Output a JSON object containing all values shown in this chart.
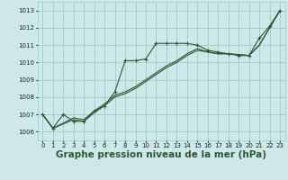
{
  "bg_color": "#cce8e8",
  "grid_color": "#99cccc",
  "line_color": "#2d5a2d",
  "xlabel": "Graphe pression niveau de la mer (hPa)",
  "xlabel_fontsize": 7.5,
  "xlim": [
    -0.5,
    23.5
  ],
  "ylim": [
    1005.5,
    1013.5
  ],
  "yticks": [
    1006,
    1007,
    1008,
    1009,
    1010,
    1011,
    1012,
    1013
  ],
  "xticks": [
    0,
    1,
    2,
    3,
    4,
    5,
    6,
    7,
    8,
    9,
    10,
    11,
    12,
    13,
    14,
    15,
    16,
    17,
    18,
    19,
    20,
    21,
    22,
    23
  ],
  "series1": [
    [
      0,
      1007.0
    ],
    [
      1,
      1006.2
    ],
    [
      2,
      1007.0
    ],
    [
      3,
      1006.6
    ],
    [
      4,
      1006.6
    ],
    [
      5,
      1007.2
    ],
    [
      6,
      1007.5
    ],
    [
      7,
      1008.3
    ],
    [
      8,
      1010.1
    ],
    [
      9,
      1010.1
    ],
    [
      10,
      1010.2
    ],
    [
      11,
      1011.1
    ],
    [
      12,
      1011.1
    ],
    [
      13,
      1011.1
    ],
    [
      14,
      1011.1
    ],
    [
      15,
      1011.0
    ],
    [
      16,
      1010.7
    ],
    [
      17,
      1010.6
    ],
    [
      18,
      1010.5
    ],
    [
      19,
      1010.4
    ],
    [
      20,
      1010.4
    ],
    [
      21,
      1011.4
    ],
    [
      22,
      1012.1
    ],
    [
      23,
      1013.0
    ]
  ],
  "series2": [
    [
      0,
      1007.0
    ],
    [
      1,
      1006.2
    ],
    [
      3,
      1006.8
    ],
    [
      4,
      1006.7
    ],
    [
      5,
      1007.2
    ],
    [
      6,
      1007.6
    ],
    [
      7,
      1008.1
    ],
    [
      8,
      1008.3
    ],
    [
      9,
      1008.6
    ],
    [
      10,
      1009.0
    ],
    [
      11,
      1009.4
    ],
    [
      12,
      1009.8
    ],
    [
      13,
      1010.1
    ],
    [
      14,
      1010.5
    ],
    [
      15,
      1010.8
    ],
    [
      16,
      1010.6
    ],
    [
      17,
      1010.5
    ],
    [
      18,
      1010.5
    ],
    [
      19,
      1010.45
    ],
    [
      20,
      1010.4
    ],
    [
      21,
      1011.0
    ],
    [
      22,
      1012.0
    ],
    [
      23,
      1013.0
    ]
  ],
  "series3": [
    [
      0,
      1007.0
    ],
    [
      1,
      1006.2
    ],
    [
      3,
      1006.7
    ],
    [
      4,
      1006.6
    ],
    [
      5,
      1007.1
    ],
    [
      6,
      1007.5
    ],
    [
      7,
      1008.0
    ],
    [
      8,
      1008.2
    ],
    [
      9,
      1008.5
    ],
    [
      10,
      1008.9
    ],
    [
      11,
      1009.3
    ],
    [
      12,
      1009.7
    ],
    [
      13,
      1010.0
    ],
    [
      14,
      1010.4
    ],
    [
      15,
      1010.7
    ],
    [
      16,
      1010.6
    ],
    [
      17,
      1010.5
    ],
    [
      18,
      1010.5
    ],
    [
      19,
      1010.45
    ],
    [
      20,
      1010.4
    ],
    [
      21,
      1011.0
    ],
    [
      22,
      1012.0
    ],
    [
      23,
      1013.0
    ]
  ]
}
